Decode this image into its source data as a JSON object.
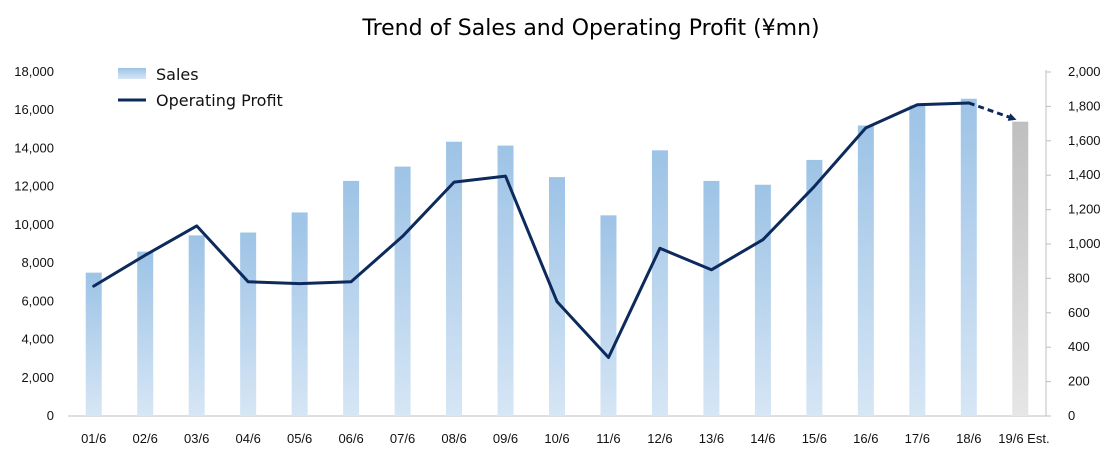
{
  "chart_data": {
    "type": "bar",
    "title": "Trend of Sales and Operating Profit (¥mn)",
    "categories": [
      "01/6",
      "02/6",
      "03/6",
      "04/6",
      "05/6",
      "06/6",
      "07/6",
      "08/6",
      "09/6",
      "10/6",
      "11/6",
      "12/6",
      "13/6",
      "14/6",
      "15/6",
      "16/6",
      "17/6",
      "18/6",
      "19/6 Est."
    ],
    "estimate_category": "19/6 Est.",
    "series": [
      {
        "name": "Sales",
        "type": "bar",
        "axis": "left",
        "values": [
          7500,
          8600,
          9450,
          9600,
          10650,
          12300,
          13050,
          14350,
          14150,
          12500,
          10500,
          13900,
          12300,
          12100,
          13400,
          15200,
          16250,
          16600,
          15400
        ]
      },
      {
        "name": "Operating Profit",
        "type": "line",
        "axis": "right",
        "values": [
          755,
          935,
          1105,
          780,
          770,
          780,
          1045,
          1360,
          1395,
          665,
          340,
          975,
          850,
          1025,
          1335,
          1675,
          1810,
          1820,
          1715
        ]
      }
    ],
    "y_left": {
      "min": 0,
      "max": 18000,
      "ticks": [
        "0",
        "2,000",
        "4,000",
        "6,000",
        "8,000",
        "10,000",
        "12,000",
        "14,000",
        "16,000",
        "18,000"
      ]
    },
    "y_right": {
      "min": 0,
      "max": 2000,
      "ticks": [
        "0",
        "200",
        "400",
        "600",
        "800",
        "1,000",
        "1,200",
        "1,400",
        "1,600",
        "1,800",
        "2,000"
      ]
    },
    "grid": false,
    "legend_position": "top-left",
    "colors": {
      "bar_top": "#9dc3e6",
      "bar_bottom": "#d6e6f5",
      "estimate_bar_top": "#bfbfbf",
      "estimate_bar_bottom": "#e6e6e6",
      "line": "#0d2a5c",
      "axis": "#bfbfbf"
    }
  }
}
